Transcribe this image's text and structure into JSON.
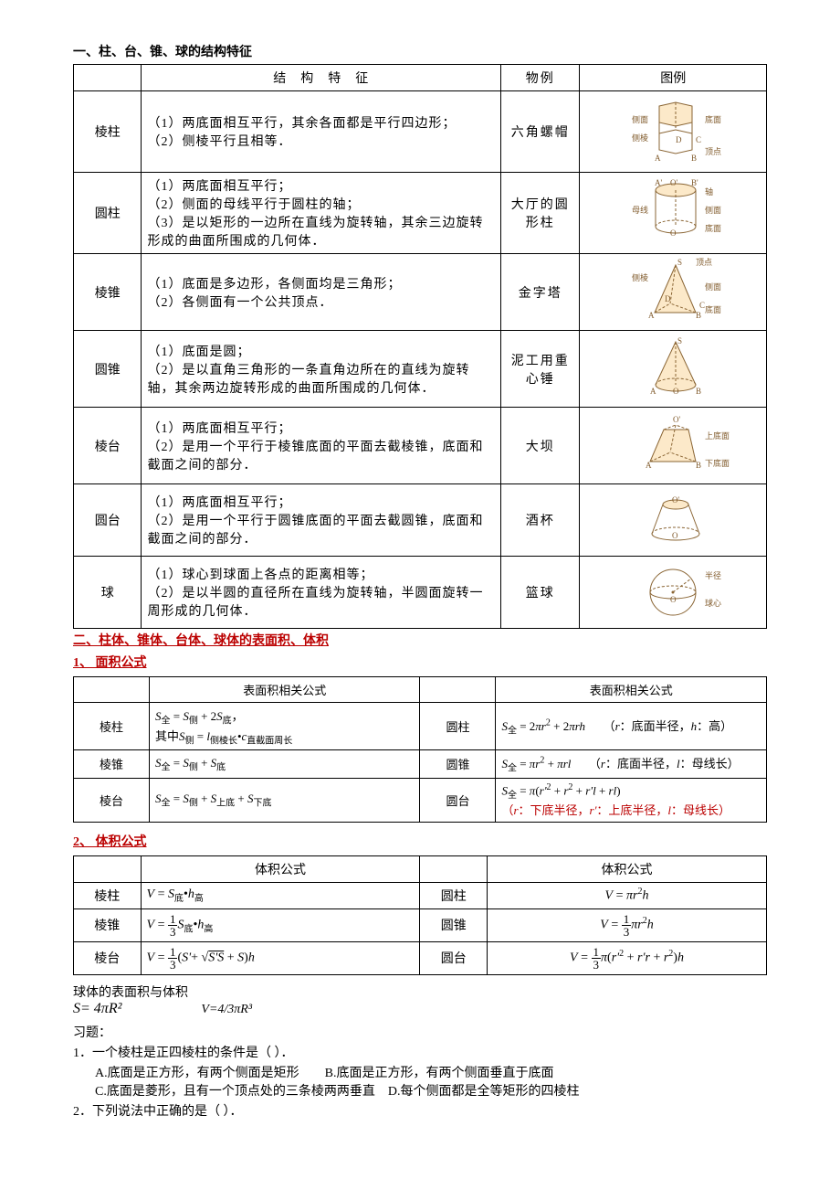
{
  "sections": {
    "s1_title": "一、柱、台、锥、球的结构特征",
    "s2_title": "二、柱体、锥体、台体、球体的表面积、体积",
    "area_title": "1、 面积公式",
    "vol_title": "2、 体积公式",
    "sphere_title": "球体的表面积与体积",
    "exercise_title": "习题："
  },
  "struct_table": {
    "headers": {
      "feat": "结　构　特　征",
      "obj": "物例",
      "img": "图例"
    },
    "rows": [
      {
        "name": "棱柱",
        "feat": "（1）两底面相互平行，其余各面都是平行四边形；\n（2）侧棱平行且相等．",
        "obj": "六角螺帽"
      },
      {
        "name": "圆柱",
        "feat": "（1）两底面相互平行；\n（2）侧面的母线平行于圆柱的轴；\n（3）是以矩形的一边所在直线为旋转轴，其余三边旋转形成的曲面所围成的几何体．",
        "obj": "大厅的圆形柱"
      },
      {
        "name": "棱锥",
        "feat": "（1）底面是多边形，各侧面均是三角形；\n（2）各侧面有一个公共顶点．",
        "obj": "金字塔"
      },
      {
        "name": "圆锥",
        "feat": "（1）底面是圆；\n（2）是以直角三角形的一条直角边所在的直线为旋转轴，其余两边旋转形成的曲面所围成的几何体．",
        "obj": "泥工用重心锤"
      },
      {
        "name": "棱台",
        "feat": "（1）两底面相互平行；\n（2）是用一个平行于棱锥底面的平面去截棱锥，底面和截面之间的部分．",
        "obj": "大坝"
      },
      {
        "name": "圆台",
        "feat": "（1）两底面相互平行；\n（2）是用一个平行于圆锥底面的平面去截圆锥，底面和截面之间的部分．",
        "obj": "酒杯"
      },
      {
        "name": "球",
        "feat": "（1）球心到球面上各点的距离相等；\n（2）是以半圆的直径所在直线为旋转轴，半圆面旋转一周形成的几何体．",
        "obj": "篮球"
      }
    ],
    "annot": {
      "prism": {
        "ce": "侧面",
        "di": "底面",
        "ceng": "侧棱",
        "ding": "顶点"
      },
      "cyl": {
        "mu": "母线",
        "zhou": "轴",
        "ce": "侧面",
        "di": "底面"
      },
      "pyr": {
        "ding": "顶点",
        "ceng": "侧棱",
        "ce": "侧面",
        "di": "底面"
      },
      "frust": {
        "top": "上底面",
        "bot": "下底面"
      },
      "sphere": {
        "r": "半径",
        "c": "球心"
      }
    }
  },
  "area_table": {
    "header": "表面积相关公式",
    "rows": [
      {
        "lname": "棱柱",
        "lformula_html": "<span class='math'>S</span><span class='sub'>全</span> = <span class='math'>S</span><span class='sub'>侧</span> + 2<span class='math'>S</span><span class='sub'>底</span>，<br>其中<span class='math'>S</span><span class='sub'>侧</span> = <span class='math'>l</span><span class='sub'>侧棱长</span>•<span class='math'>c</span><span class='sub'>直截面周长</span>",
        "rname": "圆柱",
        "rformula_html": "<span class='math'>S</span><span class='sub'>全</span> = 2<span class='math'>πr</span><span class='sup'>2</span> + 2<span class='math'>πrh</span>　　（<span class='math'>r</span>：底面半径，<span class='math'>h</span>：高）"
      },
      {
        "lname": "棱锥",
        "lformula_html": "<span class='math'>S</span><span class='sub'>全</span> = <span class='math'>S</span><span class='sub'>侧</span> + <span class='math'>S</span><span class='sub'>底</span>",
        "rname": "圆锥",
        "rformula_html": "<span class='math'>S</span><span class='sub'>全</span> = <span class='math'>πr</span><span class='sup'>2</span> + <span class='math'>πrl</span>　　（<span class='math'>r</span>：底面半径，<span class='math'>l</span>：母线长）"
      },
      {
        "lname": "棱台",
        "lformula_html": "<span class='math'>S</span><span class='sub'>全</span> = <span class='math'>S</span><span class='sub'>侧</span> + <span class='math'>S</span><span class='sub'>上底</span> + <span class='math'>S</span><span class='sub'>下底</span>",
        "rname": "圆台",
        "rformula_html": "<span class='math'>S</span><span class='sub'>全</span> = <span class='math'>π</span>(<span class='math'>r'</span><span class='sup'>2</span> + <span class='math'>r</span><span class='sup'>2</span> + <span class='math'>r'l</span> + <span class='math'>rl</span>)<br><span style='color:#b00'>（<span class='math'>r</span>：下底半径，<span class='math'>r'</span>：上底半径，<span class='math'>l</span>：母线长）</span>"
      }
    ]
  },
  "vol_table": {
    "header": "体积公式",
    "rows": [
      {
        "lname": "棱柱",
        "lformula_html": "<span class='math'>V</span> = <span class='math'>S</span><span class='sub'>底</span>•<span class='math'>h</span><span class='sub'>高</span>",
        "rname": "圆柱",
        "rformula_html": "<span class='math'>V</span> = <span class='math'>πr</span><span class='sup'>2</span><span class='math'>h</span>"
      },
      {
        "lname": "棱锥",
        "lformula_html": "<span class='math'>V</span> = <span class='frac'><span class='n'>1</span><span class='d'>3</span></span><span class='math'>S</span><span class='sub'>底</span>•<span class='math'>h</span><span class='sub'>高</span>",
        "rname": "圆锥",
        "rformula_html": "<span class='math'>V</span> = <span class='frac'><span class='n'>1</span><span class='d'>3</span></span><span class='math'>πr</span><span class='sup'>2</span><span class='math'>h</span>"
      },
      {
        "lname": "棱台",
        "lformula_html": "<span class='math'>V</span> = <span class='frac'><span class='n'>1</span><span class='d'>3</span></span>(<span class='math'>S'</span>+ √<span style='text-decoration:overline'><span class='math'>S'S</span></span> + <span class='math'>S</span>)<span class='math'>h</span>",
        "rname": "圆台",
        "rformula_html": "<span class='math'>V</span> = <span class='frac'><span class='n'>1</span><span class='d'>3</span></span><span class='math'>π</span>(<span class='math'>r'</span><span class='sup'>2</span> + <span class='math'>r'r</span> + <span class='math'>r</span><span class='sup'>2</span>)<span class='math'>h</span>"
      }
    ]
  },
  "sphere_formulas": {
    "area": "S= 4πR²",
    "vol": "V=4/3πR³"
  },
  "exercises": {
    "q1": "1．一个棱柱是正四棱柱的条件是（  ）．",
    "q1_opts": "A.底面是正方形，有两个侧面是矩形　　B.底面是正方形，有两个侧面垂直于底面\nC.底面是菱形，且有一个顶点处的三条棱两两垂直　D.每个侧面都是全等矩形的四棱柱",
    "q2": "2．下列说法中正确的是（  ）．"
  },
  "colors": {
    "shape_stroke": "#8a6534",
    "shape_fill": "#fce9c9",
    "annot_color": "#815b2c",
    "red": "#b00000"
  }
}
